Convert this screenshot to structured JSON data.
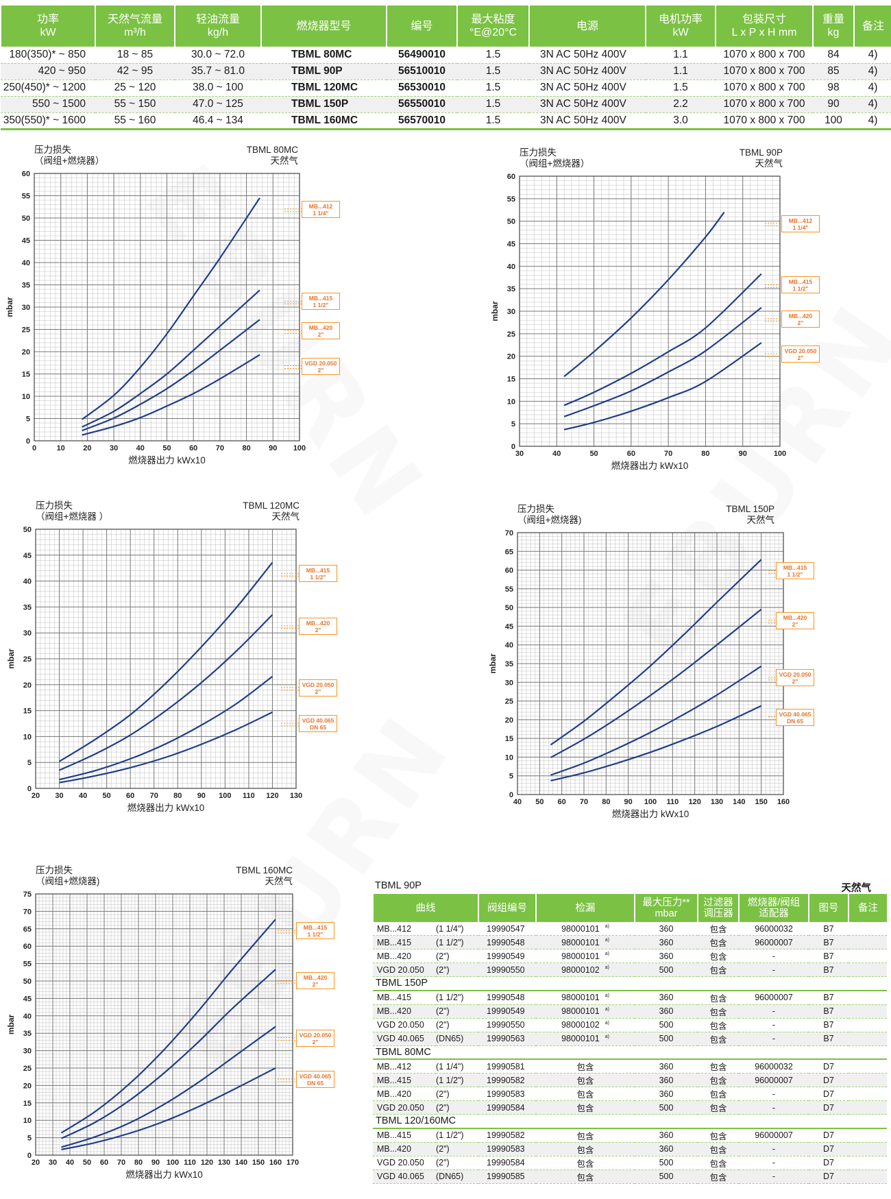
{
  "watermark": "EBURN",
  "spec_table": {
    "headers": [
      "功率\nkW",
      "天然气流量\nm³/h",
      "轻油流量\nkg/h",
      "燃烧器型号",
      "编号",
      "最大粘度\n°E@20°C",
      "电源",
      "电机功率\nkW",
      "包装尺寸\nL x P x H  mm",
      "重量\nkg",
      "备注"
    ],
    "rows": [
      [
        "180(350)* ~ 850",
        "18 ~ 85",
        "30.0 ~ 72.0",
        "TBML 80MC",
        "56490010",
        "1.5",
        "3N AC 50Hz 400V",
        "1.1",
        "1070 x 800 x 700",
        "84",
        "4)"
      ],
      [
        "420 ~ 950",
        "42 ~ 95",
        "35.7 ~ 81.0",
        "TBML 90P",
        "56510010",
        "1.5",
        "3N AC 50Hz 400V",
        "1.1",
        "1070 x 800 x 700",
        "85",
        "4)"
      ],
      [
        "250(450)* ~ 1200",
        "25 ~ 120",
        "38.0 ~ 100",
        "TBML 120MC",
        "56530010",
        "1.5",
        "3N AC 50Hz 400V",
        "1.5",
        "1070 x 800 x 700",
        "98",
        "4)"
      ],
      [
        "550 ~ 1500",
        "55 ~ 150",
        "47.0 ~ 125",
        "TBML 150P",
        "56550010",
        "1.5",
        "3N AC 50Hz 400V",
        "2.2",
        "1070 x 800 x 700",
        "90",
        "4)"
      ],
      [
        "350(550)* ~ 1600",
        "55 ~ 160",
        "46.4 ~ 134",
        "TBML 160MC",
        "56570010",
        "1.5",
        "3N AC 50Hz 400V",
        "3.0",
        "1070 x 800 x 700",
        "100",
        "4)"
      ]
    ]
  },
  "chart_data": [
    {
      "type": "line",
      "title": "TBML 80MC",
      "subtitle": "天然气",
      "corner_label": [
        "压力损失",
        "（阀组+燃烧器）"
      ],
      "xlabel": "燃烧器出力  kWx10",
      "ylabel": "mbar",
      "xlim": [
        0,
        100
      ],
      "ylim": [
        0,
        60
      ],
      "x_ticks": [
        0,
        10,
        20,
        30,
        40,
        50,
        60,
        70,
        80,
        90,
        100
      ],
      "y_ticks": [
        0,
        5,
        10,
        15,
        20,
        25,
        30,
        35,
        40,
        45,
        50,
        55,
        60
      ],
      "grid": true,
      "series": [
        {
          "name": "MB...412\n1 1/4\"",
          "x": [
            18,
            30,
            40,
            50,
            60,
            70,
            85
          ],
          "y": [
            4.8,
            10.2,
            16.5,
            24,
            32.5,
            41,
            54.5
          ]
        },
        {
          "name": "MB...415\n1 1/2\"",
          "x": [
            18,
            30,
            40,
            50,
            60,
            70,
            85
          ],
          "y": [
            3.1,
            6.6,
            10.6,
            15,
            20.3,
            25.7,
            33.8
          ]
        },
        {
          "name": "MB...420\n2\"",
          "x": [
            18,
            30,
            40,
            50,
            60,
            70,
            85
          ],
          "y": [
            2.3,
            5.1,
            8.2,
            11.7,
            15.8,
            20.3,
            27.2
          ]
        },
        {
          "name": "VGD 20.050\n2\"",
          "x": [
            18,
            30,
            40,
            50,
            60,
            70,
            85
          ],
          "y": [
            1.3,
            3.2,
            5.2,
            7.8,
            10.6,
            13.9,
            19.3
          ]
        }
      ]
    },
    {
      "type": "line",
      "title": "TBML 90P",
      "subtitle": "天然气",
      "corner_label": [
        "压力损失",
        "（阀组+燃烧器）"
      ],
      "xlabel": "燃烧器出力  kWx10",
      "ylabel": "mbar",
      "xlim": [
        30,
        100
      ],
      "ylim": [
        0,
        60
      ],
      "x_ticks": [
        30,
        40,
        50,
        60,
        70,
        80,
        90,
        100
      ],
      "y_ticks": [
        0,
        5,
        10,
        15,
        20,
        25,
        30,
        35,
        40,
        45,
        50,
        55,
        60
      ],
      "grid": true,
      "series": [
        {
          "name": "MB...412\n1 1/4\"",
          "x": [
            42,
            50,
            60,
            70,
            80,
            85
          ],
          "y": [
            15.5,
            21,
            28.5,
            37,
            46.5,
            52
          ]
        },
        {
          "name": "MB...415\n1 1/2\"",
          "x": [
            42,
            50,
            60,
            70,
            80,
            95
          ],
          "y": [
            9.1,
            12,
            16.2,
            21,
            26.3,
            38.3
          ]
        },
        {
          "name": "MB...420\n2\"",
          "x": [
            42,
            50,
            60,
            70,
            80,
            95
          ],
          "y": [
            6.6,
            9,
            12.3,
            16.5,
            21.2,
            30.8
          ]
        },
        {
          "name": "VGD 20.050\n2\"",
          "x": [
            42,
            50,
            60,
            70,
            80,
            95
          ],
          "y": [
            3.7,
            5.3,
            7.8,
            10.8,
            14.4,
            23
          ]
        }
      ]
    },
    {
      "type": "line",
      "title": "TBML 120MC",
      "subtitle": "天然气",
      "corner_label": [
        "压力损失",
        "（阀组+燃烧器 ）"
      ],
      "xlabel": "燃烧器出力  kWx10",
      "ylabel": "mbar",
      "xlim": [
        20,
        130
      ],
      "ylim": [
        0,
        50
      ],
      "x_ticks": [
        20,
        30,
        40,
        50,
        60,
        70,
        80,
        90,
        100,
        110,
        120,
        130
      ],
      "y_ticks": [
        0,
        5,
        10,
        15,
        20,
        25,
        30,
        35,
        40,
        45,
        50
      ],
      "grid": true,
      "series": [
        {
          "name": "MB...415\n1 1/2\"",
          "x": [
            30,
            45,
            60,
            75,
            90,
            105,
            120
          ],
          "y": [
            5.2,
            9.4,
            14.2,
            20.3,
            27.3,
            35,
            43.6
          ]
        },
        {
          "name": "MB...420\n2\"",
          "x": [
            30,
            45,
            60,
            75,
            90,
            105,
            120
          ],
          "y": [
            3.5,
            6.6,
            10.3,
            15,
            20.4,
            26.6,
            33.5
          ]
        },
        {
          "name": "VGD 20.050\n2\"",
          "x": [
            30,
            45,
            60,
            75,
            90,
            105,
            120
          ],
          "y": [
            1.7,
            3.4,
            5.7,
            8.6,
            12.2,
            16.4,
            21.6
          ]
        },
        {
          "name": "VGD 40.065\nDN 65",
          "x": [
            30,
            45,
            60,
            75,
            90,
            105,
            120
          ],
          "y": [
            1.1,
            2.4,
            4,
            6,
            8.5,
            11.4,
            14.7
          ]
        }
      ]
    },
    {
      "type": "line",
      "title": "TBML 150P",
      "subtitle": "天然气",
      "corner_label": [
        "压力损失",
        "（阀组+燃烧器)"
      ],
      "xlabel": "燃烧器出力  kWx10",
      "ylabel": "mbar",
      "xlim": [
        40,
        160
      ],
      "ylim": [
        0,
        70
      ],
      "x_ticks": [
        40,
        50,
        60,
        70,
        80,
        90,
        100,
        110,
        120,
        130,
        140,
        150,
        160
      ],
      "y_ticks": [
        0,
        5,
        10,
        15,
        20,
        25,
        30,
        35,
        40,
        45,
        50,
        55,
        60,
        65,
        70
      ],
      "grid": true,
      "series": [
        {
          "name": "MB...415\n1 1/2\"",
          "x": [
            55,
            70,
            85,
            100,
            115,
            130,
            150
          ],
          "y": [
            13.3,
            19.6,
            26.8,
            34.4,
            42.7,
            51.4,
            62.8
          ]
        },
        {
          "name": "MB...420\n2\"",
          "x": [
            55,
            70,
            85,
            100,
            115,
            130,
            150
          ],
          "y": [
            9.9,
            14.8,
            20.4,
            26.5,
            33,
            40,
            49.5
          ]
        },
        {
          "name": "VGD 20.050\n2\"",
          "x": [
            55,
            70,
            85,
            100,
            115,
            130,
            150
          ],
          "y": [
            5.2,
            8.4,
            12.3,
            16.6,
            21.4,
            26.6,
            34.3
          ]
        },
        {
          "name": "VGD 40.065\nDN 65",
          "x": [
            55,
            70,
            85,
            100,
            115,
            130,
            150
          ],
          "y": [
            3.7,
            5.8,
            8.4,
            11.3,
            14.6,
            18.2,
            23.7
          ]
        }
      ]
    },
    {
      "type": "line",
      "title": "TBML 160MC",
      "subtitle": "天然气",
      "corner_label": [
        "压力损失",
        "（阀组+燃烧器)"
      ],
      "xlabel": "燃烧器出力  kWx10",
      "ylabel": "mbar",
      "xlim": [
        20,
        170
      ],
      "ylim": [
        0,
        75
      ],
      "x_ticks": [
        20,
        30,
        40,
        50,
        60,
        70,
        80,
        90,
        100,
        110,
        120,
        130,
        140,
        150,
        160,
        170
      ],
      "y_ticks": [
        0,
        5,
        10,
        15,
        20,
        25,
        30,
        35,
        40,
        45,
        50,
        55,
        60,
        65,
        70,
        75
      ],
      "grid": true,
      "series": [
        {
          "name": "MB...415\n1 1/2\"",
          "x": [
            35,
            55,
            75,
            95,
            115,
            135,
            160
          ],
          "y": [
            6.4,
            12.6,
            20.6,
            30.3,
            41.4,
            53.4,
            67.7
          ]
        },
        {
          "name": "MB...420\n2\"",
          "x": [
            35,
            55,
            75,
            95,
            115,
            135,
            160
          ],
          "y": [
            4.8,
            9.5,
            15.8,
            23.6,
            32.5,
            42.2,
            53.3
          ]
        },
        {
          "name": "VGD 20.050\n2\"",
          "x": [
            35,
            55,
            75,
            95,
            115,
            135,
            160
          ],
          "y": [
            2.3,
            5.3,
            9.3,
            14.6,
            20.9,
            28,
            36.9
          ]
        },
        {
          "name": "VGD 40.065\nDN 65",
          "x": [
            35,
            55,
            75,
            95,
            115,
            135,
            160
          ],
          "y": [
            1.6,
            3.6,
            6.3,
            9.7,
            13.9,
            18.7,
            25
          ]
        }
      ]
    }
  ],
  "valve_table": {
    "title": "TBML 90P",
    "gas": "天然气",
    "headers": [
      "曲线",
      "阀组编号",
      "检漏",
      "最大压力**\nmbar",
      "过滤器\n调压器",
      "燃烧器/阀组\n适配器",
      "图号",
      "备注"
    ],
    "sections": [
      {
        "title": "",
        "rows": [
          [
            "MB...412",
            "(1 1/4\")",
            "19990547",
            "98000101",
            "a)",
            "360",
            "包含",
            "96000032",
            "B7",
            ""
          ],
          [
            "MB...415",
            "(1 1/2\")",
            "19990548",
            "98000101",
            "a)",
            "360",
            "包含",
            "96000007",
            "B7",
            ""
          ],
          [
            "MB...420",
            "(2\")",
            "19990549",
            "98000101",
            "a)",
            "360",
            "包含",
            "-",
            "B7",
            ""
          ],
          [
            "VGD 20.050",
            "(2\")",
            "19990550",
            "98000102",
            "a)",
            "500",
            "包含",
            "-",
            "B7",
            ""
          ]
        ]
      },
      {
        "title": "TBML 150P",
        "rows": [
          [
            "MB...415",
            "(1 1/2\")",
            "19990548",
            "98000101",
            "a)",
            "360",
            "包含",
            "96000007",
            "B7",
            ""
          ],
          [
            "MB...420",
            "(2\")",
            "19990549",
            "98000101",
            "a)",
            "360",
            "包含",
            "-",
            "B7",
            ""
          ],
          [
            "VGD 20.050",
            "(2\")",
            "19990550",
            "98000102",
            "a)",
            "500",
            "包含",
            "-",
            "B7",
            ""
          ],
          [
            "VGD 40.065",
            "(DN65)",
            "19990563",
            "98000101",
            "a)",
            "500",
            "包含",
            "-",
            "B7",
            ""
          ]
        ]
      },
      {
        "title": "TBML 80MC",
        "rows": [
          [
            "MB...412",
            "(1 1/4\")",
            "19990581",
            "包含",
            "",
            "360",
            "包含",
            "96000032",
            "D7",
            ""
          ],
          [
            "MB...415",
            "(1 1/2\")",
            "19990582",
            "包含",
            "",
            "360",
            "包含",
            "96000007",
            "D7",
            ""
          ],
          [
            "MB...420",
            "(2\")",
            "19990583",
            "包含",
            "",
            "360",
            "包含",
            "-",
            "D7",
            ""
          ],
          [
            "VGD 20.050",
            "(2\")",
            "19990584",
            "包含",
            "",
            "500",
            "包含",
            "-",
            "D7",
            ""
          ]
        ]
      },
      {
        "title": "TBML 120/160MC",
        "rows": [
          [
            "MB...415",
            "(1 1/2\")",
            "19990582",
            "包含",
            "",
            "360",
            "包含",
            "96000007",
            "D7",
            ""
          ],
          [
            "MB...420",
            "(2\")",
            "19990583",
            "包含",
            "",
            "360",
            "包含",
            "-",
            "D7",
            ""
          ],
          [
            "VGD 20.050",
            "(2\")",
            "19990584",
            "包含",
            "",
            "500",
            "包含",
            "-",
            "D7",
            ""
          ],
          [
            "VGD 40.065",
            "(DN65)",
            "19990585",
            "包含",
            "",
            "500",
            "包含",
            "-",
            "D7",
            ""
          ]
        ]
      }
    ]
  },
  "colors": {
    "accent": "#7bc143",
    "curve": "#1f3d8c",
    "tag_orange": "#f7941d",
    "grid": "#999999"
  }
}
